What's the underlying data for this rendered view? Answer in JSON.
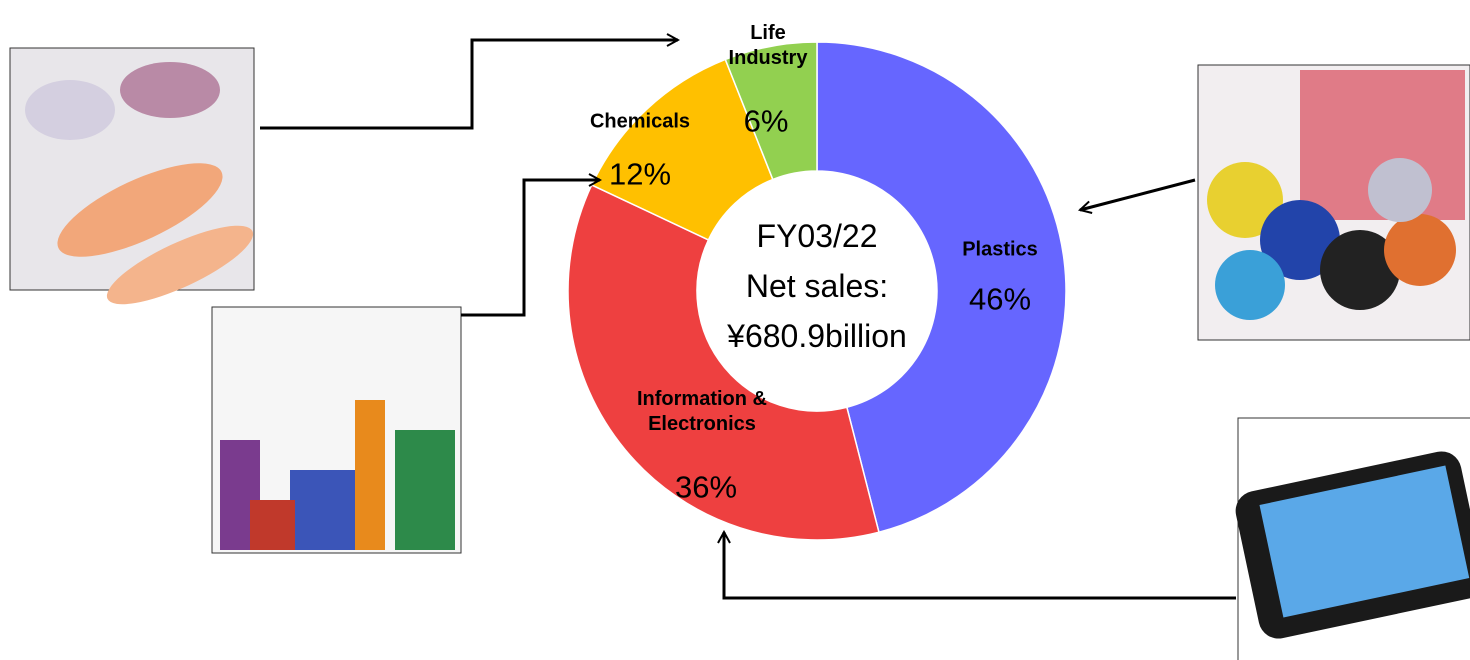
{
  "chart_data": {
    "type": "donut",
    "center_text": [
      "FY03/22",
      "Net sales:",
      "¥680.9billion"
    ],
    "categories": [
      "Plastics",
      "Information & Electronics",
      "Chemicals",
      "Life Industry"
    ],
    "values": [
      46,
      36,
      12,
      6
    ],
    "value_labels": [
      "46%",
      "36%",
      "12%",
      "6%"
    ],
    "colors": [
      "#6666ff",
      "#ee4040",
      "#ffc000",
      "#92d050"
    ]
  }
}
